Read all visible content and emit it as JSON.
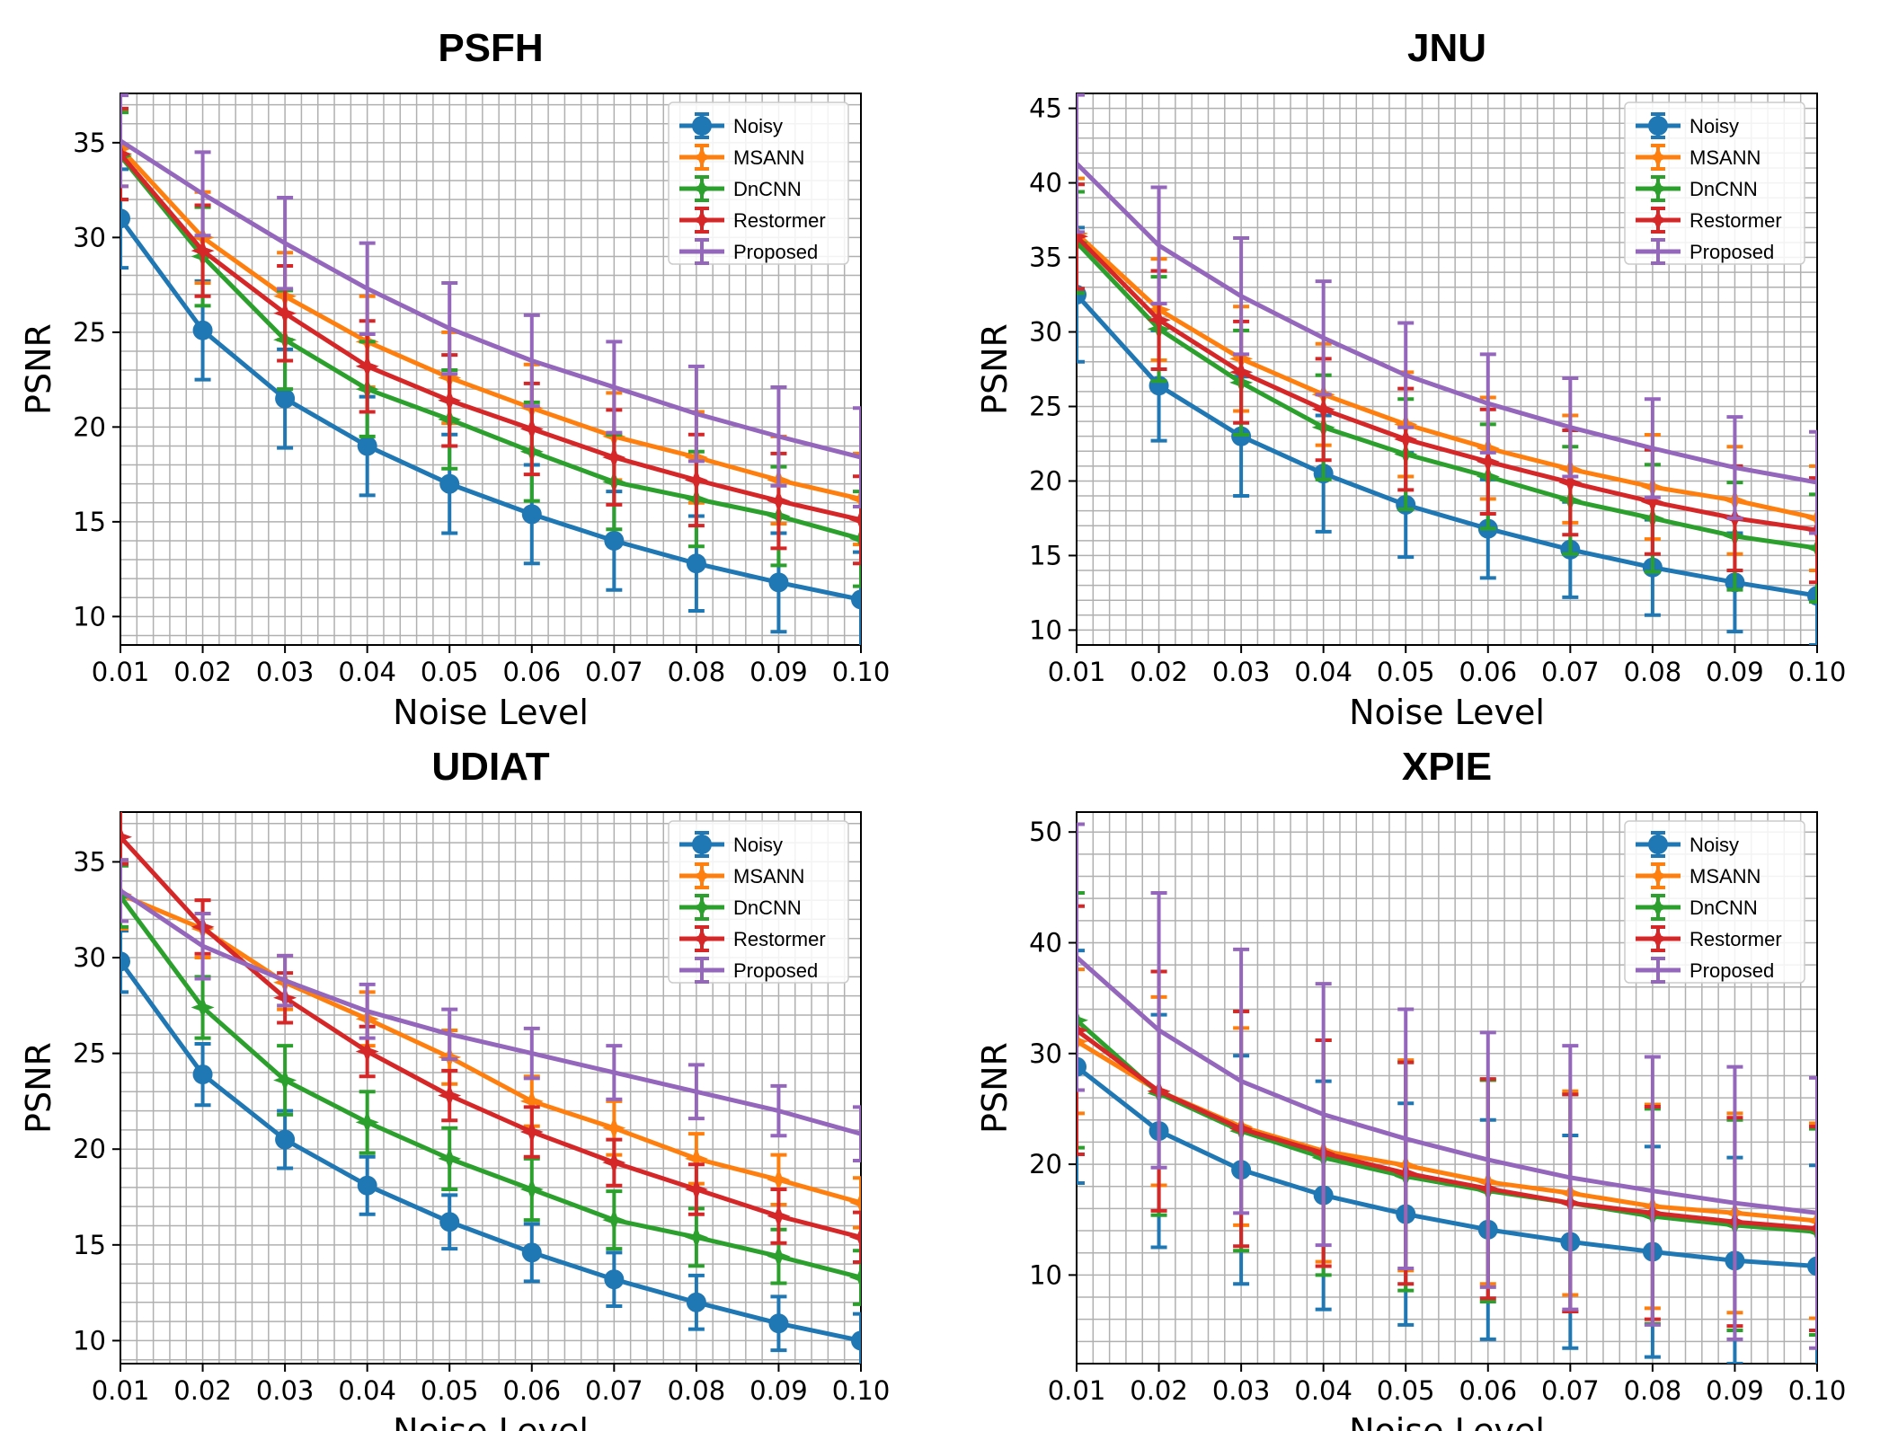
{
  "colors": {
    "Noisy": "#1f77b4",
    "MSANN": "#ff7f0e",
    "DnCNN": "#2ca02c",
    "Restormer": "#d62728",
    "Proposed": "#9467bd"
  },
  "chart_data": [
    {
      "type": "line",
      "title": "PSFH",
      "xlabel": "Noise Level",
      "ylabel": "PSNR",
      "x": [
        0.01,
        0.02,
        0.03,
        0.04,
        0.05,
        0.06,
        0.07,
        0.08,
        0.09,
        0.1
      ],
      "xlim": [
        0.01,
        0.1
      ],
      "ylim": [
        8.5,
        37.6
      ],
      "yticks": [
        10,
        15,
        20,
        25,
        30,
        35
      ],
      "grid": true,
      "legend": "top-right",
      "series": [
        {
          "name": "Noisy",
          "marker": "circle",
          "values": [
            31.0,
            25.1,
            21.5,
            19.0,
            17.0,
            15.4,
            14.0,
            12.8,
            11.8,
            10.9
          ],
          "err": [
            2.6,
            2.6,
            2.6,
            2.6,
            2.6,
            2.6,
            2.6,
            2.5,
            2.6,
            2.5
          ]
        },
        {
          "name": "MSANN",
          "marker": "star",
          "values": [
            34.7,
            30.0,
            26.9,
            24.5,
            22.6,
            21.0,
            19.5,
            18.4,
            17.2,
            16.2
          ],
          "err": [
            2.0,
            2.4,
            2.3,
            2.4,
            2.4,
            2.3,
            2.3,
            2.4,
            2.3,
            2.4
          ]
        },
        {
          "name": "DnCNN",
          "marker": "star",
          "values": [
            34.3,
            29.0,
            24.6,
            22.0,
            20.4,
            18.7,
            17.1,
            16.2,
            15.3,
            14.1
          ],
          "err": [
            2.3,
            2.6,
            2.6,
            2.5,
            2.6,
            2.6,
            2.5,
            2.5,
            2.6,
            2.5
          ]
        },
        {
          "name": "Restormer",
          "marker": "star",
          "values": [
            34.4,
            29.3,
            26.0,
            23.2,
            21.4,
            19.9,
            18.4,
            17.2,
            16.1,
            15.1
          ],
          "err": [
            2.4,
            2.4,
            2.5,
            2.4,
            2.4,
            2.4,
            2.5,
            2.4,
            2.5,
            2.3
          ]
        },
        {
          "name": "Proposed",
          "marker": "none",
          "values": [
            35.1,
            32.3,
            29.7,
            27.3,
            25.2,
            23.5,
            22.1,
            20.7,
            19.5,
            18.4
          ],
          "err": [
            2.4,
            2.2,
            2.4,
            2.4,
            2.4,
            2.4,
            2.4,
            2.5,
            2.6,
            2.6
          ]
        }
      ]
    },
    {
      "type": "line",
      "title": "JNU",
      "xlabel": "Noise Level",
      "ylabel": "PSNR",
      "x": [
        0.01,
        0.02,
        0.03,
        0.04,
        0.05,
        0.06,
        0.07,
        0.08,
        0.09,
        0.1
      ],
      "xlim": [
        0.01,
        0.1
      ],
      "ylim": [
        9.0,
        46.0
      ],
      "yticks": [
        10,
        15,
        20,
        25,
        30,
        35,
        40,
        45
      ],
      "grid": true,
      "legend": "top-right",
      "series": [
        {
          "name": "Noisy",
          "marker": "circle",
          "values": [
            32.5,
            26.4,
            23.0,
            20.5,
            18.4,
            16.8,
            15.4,
            14.2,
            13.2,
            12.3
          ],
          "err": [
            4.5,
            3.7,
            4.0,
            3.9,
            3.5,
            3.3,
            3.2,
            3.2,
            3.3,
            3.3
          ]
        },
        {
          "name": "MSANN",
          "marker": "star",
          "values": [
            36.6,
            31.5,
            28.2,
            25.8,
            23.8,
            22.2,
            20.8,
            19.6,
            18.7,
            17.5
          ],
          "err": [
            3.7,
            3.4,
            3.5,
            3.4,
            3.5,
            3.4,
            3.6,
            3.5,
            3.6,
            3.5
          ]
        },
        {
          "name": "DnCNN",
          "marker": "star",
          "values": [
            36.0,
            30.2,
            26.6,
            23.6,
            21.8,
            20.3,
            18.7,
            17.5,
            16.3,
            15.5
          ],
          "err": [
            3.4,
            3.5,
            3.5,
            3.5,
            3.7,
            3.5,
            3.6,
            3.6,
            3.6,
            3.6
          ]
        },
        {
          "name": "Restormer",
          "marker": "star",
          "values": [
            36.4,
            30.8,
            27.3,
            24.8,
            22.8,
            21.3,
            19.9,
            18.6,
            17.5,
            16.7
          ],
          "err": [
            3.5,
            3.3,
            3.4,
            3.4,
            3.4,
            3.5,
            3.5,
            3.5,
            3.5,
            3.5
          ]
        },
        {
          "name": "Proposed",
          "marker": "none",
          "values": [
            41.3,
            35.8,
            32.4,
            29.6,
            27.1,
            25.2,
            23.6,
            22.2,
            20.9,
            19.9
          ],
          "err": [
            4.6,
            3.9,
            3.9,
            3.8,
            3.5,
            3.3,
            3.3,
            3.3,
            3.4,
            3.4
          ]
        }
      ]
    },
    {
      "type": "line",
      "title": "UDIAT",
      "xlabel": "Noise Level",
      "ylabel": "PSNR",
      "x": [
        0.01,
        0.02,
        0.03,
        0.04,
        0.05,
        0.06,
        0.07,
        0.08,
        0.09,
        0.1
      ],
      "xlim": [
        0.01,
        0.1
      ],
      "ylim": [
        8.8,
        37.6
      ],
      "yticks": [
        10,
        15,
        20,
        25,
        30,
        35
      ],
      "grid": true,
      "legend": "top-right",
      "series": [
        {
          "name": "Noisy",
          "marker": "circle",
          "values": [
            29.8,
            23.9,
            20.5,
            18.1,
            16.2,
            14.6,
            13.2,
            12.0,
            10.9,
            10.0
          ],
          "err": [
            1.6,
            1.6,
            1.5,
            1.5,
            1.4,
            1.5,
            1.4,
            1.4,
            1.4,
            1.4
          ]
        },
        {
          "name": "MSANN",
          "marker": "star",
          "values": [
            33.3,
            31.5,
            28.7,
            26.8,
            24.8,
            22.5,
            21.1,
            19.5,
            18.4,
            17.2
          ],
          "err": [
            1.8,
            1.5,
            1.4,
            1.4,
            1.4,
            1.3,
            1.4,
            1.3,
            1.3,
            1.3
          ]
        },
        {
          "name": "DnCNN",
          "marker": "star",
          "values": [
            33.2,
            27.4,
            23.6,
            21.4,
            19.5,
            17.9,
            16.3,
            15.4,
            14.4,
            13.3
          ],
          "err": [
            1.6,
            1.6,
            1.8,
            1.6,
            1.6,
            1.6,
            1.5,
            1.5,
            1.4,
            1.4
          ]
        },
        {
          "name": "Restormer",
          "marker": "star",
          "values": [
            36.3,
            31.6,
            27.9,
            25.1,
            22.8,
            20.9,
            19.3,
            17.9,
            16.5,
            15.4
          ],
          "err": [
            1.4,
            1.4,
            1.3,
            1.3,
            1.3,
            1.3,
            1.2,
            1.3,
            1.4,
            1.3
          ]
        },
        {
          "name": "Proposed",
          "marker": "none",
          "values": [
            33.5,
            30.6,
            28.8,
            27.2,
            26.0,
            25.0,
            24.0,
            23.0,
            22.0,
            20.8
          ],
          "err": [
            1.6,
            1.7,
            1.3,
            1.4,
            1.3,
            1.3,
            1.4,
            1.4,
            1.3,
            1.4
          ]
        }
      ]
    },
    {
      "type": "line",
      "title": "XPIE",
      "xlabel": "Noise Level",
      "ylabel": "PSNR",
      "x": [
        0.01,
        0.02,
        0.03,
        0.04,
        0.05,
        0.06,
        0.07,
        0.08,
        0.09,
        0.1
      ],
      "xlim": [
        0.01,
        0.1
      ],
      "ylim": [
        2.0,
        51.8
      ],
      "yticks": [
        10,
        20,
        30,
        40,
        50
      ],
      "grid": true,
      "legend": "top-right",
      "series": [
        {
          "name": "Noisy",
          "marker": "circle",
          "values": [
            28.8,
            23.0,
            19.5,
            17.2,
            15.5,
            14.1,
            13.0,
            12.1,
            11.3,
            10.8
          ],
          "err": [
            10.5,
            10.5,
            10.3,
            10.3,
            10.0,
            9.9,
            9.6,
            9.5,
            9.3,
            9.1
          ]
        },
        {
          "name": "MSANN",
          "marker": "star",
          "values": [
            31.1,
            26.6,
            23.4,
            21.2,
            19.9,
            18.4,
            17.4,
            16.2,
            15.6,
            14.9
          ],
          "err": [
            6.5,
            8.5,
            8.9,
            10.0,
            9.5,
            9.2,
            9.2,
            9.2,
            9.0,
            8.8
          ]
        },
        {
          "name": "DnCNN",
          "marker": "star",
          "values": [
            33.0,
            26.4,
            23.0,
            20.6,
            18.9,
            17.6,
            16.5,
            15.3,
            14.5,
            13.9
          ],
          "err": [
            11.5,
            11.0,
            10.8,
            10.6,
            10.3,
            10.0,
            9.8,
            9.7,
            9.5,
            9.3
          ]
        },
        {
          "name": "Restormer",
          "marker": "star",
          "values": [
            32.1,
            26.6,
            23.2,
            21.0,
            19.2,
            17.8,
            16.5,
            15.6,
            14.8,
            14.2
          ],
          "err": [
            11.2,
            10.8,
            10.6,
            10.2,
            10.0,
            9.9,
            9.8,
            9.6,
            9.4,
            9.2
          ]
        },
        {
          "name": "Proposed",
          "marker": "none",
          "values": [
            38.7,
            32.1,
            27.5,
            24.5,
            22.3,
            20.4,
            18.8,
            17.6,
            16.5,
            15.6
          ],
          "err": [
            12.0,
            12.4,
            11.9,
            11.8,
            11.7,
            11.5,
            11.9,
            12.1,
            12.3,
            12.2
          ]
        }
      ]
    }
  ]
}
